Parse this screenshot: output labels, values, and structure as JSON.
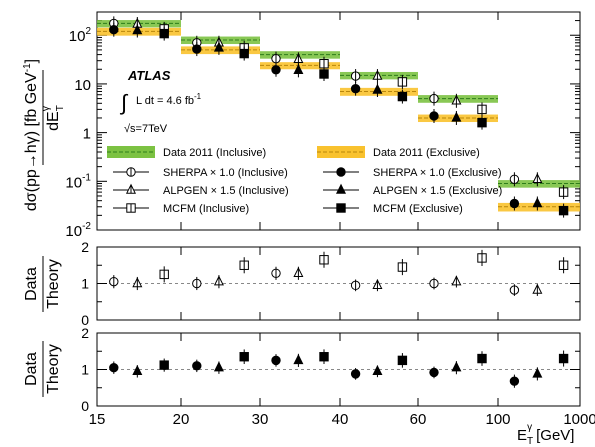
{
  "colors": {
    "inclusive_band": "#7cc242",
    "inclusive_line": "#2e7d1a",
    "exclusive_band": "#f9c22e",
    "exclusive_line": "#b8860b",
    "marker": "#000000",
    "ratio_line": "#888888"
  },
  "chart_data": [
    {
      "type": "scatter",
      "panel": "cross-section",
      "ylabel": "dσ(pp→hγ)/dE_T^γ [fb GeV⁻¹]",
      "ylabel_parts": {
        "line1": "dσ(pp→hγ) [fb GeV",
        "sup": "-1",
        "line1_close": "]",
        "line2": "dE",
        "line2_sub": "T",
        "line2_sup": "γ"
      },
      "y_scale": "log",
      "ylim": [
        0.01,
        300
      ],
      "y_ticks": [
        {
          "value": 0.01,
          "base": "10",
          "exp": "-2"
        },
        {
          "value": 0.1,
          "base": "10",
          "exp": "-1"
        },
        {
          "value": 1,
          "base": "1",
          "exp": ""
        },
        {
          "value": 10,
          "base": "10",
          "exp": ""
        },
        {
          "value": 100,
          "base": "10",
          "exp": "2"
        }
      ],
      "atlas": {
        "label": "ATLAS",
        "lumi_prefix": "L dt = 4.6 fb",
        "lumi_sup": "-1",
        "sqrt_s": "√s=7TeV"
      },
      "bins": [
        {
          "range": [
            15,
            20
          ],
          "incl_data": 175,
          "incl_err": 30,
          "excl_data": 120,
          "excl_err": 22,
          "sherpa_incl": 175,
          "alpgen_incl": 170,
          "mcfm_incl": 135,
          "sherpa_excl": 130,
          "alpgen_excl": 125,
          "mcfm_excl": 108
        },
        {
          "range": [
            20,
            30
          ],
          "incl_data": 80,
          "incl_err": 14,
          "excl_data": 50,
          "excl_err": 9,
          "sherpa_incl": 70,
          "alpgen_incl": 70,
          "mcfm_incl": 55,
          "sherpa_excl": 52,
          "alpgen_excl": 55,
          "mcfm_excl": 42
        },
        {
          "range": [
            30,
            40
          ],
          "incl_data": 40,
          "incl_err": 7,
          "excl_data": 24,
          "excl_err": 4,
          "sherpa_incl": 33,
          "alpgen_incl": 32,
          "mcfm_incl": 26,
          "sherpa_excl": 19.5,
          "alpgen_excl": 19,
          "mcfm_excl": 16
        },
        {
          "range": [
            40,
            60
          ],
          "incl_data": 15,
          "incl_err": 2.6,
          "excl_data": 7,
          "excl_err": 1.3,
          "sherpa_incl": 14.5,
          "alpgen_incl": 14.5,
          "mcfm_incl": 11,
          "sherpa_excl": 8,
          "alpgen_excl": 7.5,
          "mcfm_excl": 5.5
        },
        {
          "range": [
            60,
            100
          ],
          "incl_data": 5,
          "incl_err": 0.9,
          "excl_data": 2.0,
          "excl_err": 0.35,
          "sherpa_incl": 5,
          "alpgen_incl": 4.5,
          "mcfm_incl": 3.0,
          "sherpa_excl": 2.2,
          "alpgen_excl": 2.0,
          "mcfm_excl": 1.6
        },
        {
          "range": [
            100,
            1000
          ],
          "incl_data": 0.09,
          "incl_err": 0.016,
          "excl_data": 0.03,
          "excl_err": 0.006,
          "sherpa_incl": 0.11,
          "alpgen_incl": 0.11,
          "mcfm_incl": 0.06,
          "sherpa_excl": 0.035,
          "alpgen_excl": 0.035,
          "mcfm_excl": 0.025
        }
      ],
      "legend": [
        {
          "label": "Data 2011 (Inclusive)",
          "kind": "band-incl"
        },
        {
          "label": "Data 2011 (Exclusive)",
          "kind": "band-excl"
        },
        {
          "label": "SHERPA × 1.0 (Inclusive)",
          "kind": "circle-open"
        },
        {
          "label": "SHERPA × 1.0 (Exclusive)",
          "kind": "circle-filled"
        },
        {
          "label": "ALPGEN × 1.5 (Inclusive)",
          "kind": "triangle-open"
        },
        {
          "label": "ALPGEN × 1.5 (Exclusive)",
          "kind": "triangle-filled"
        },
        {
          "label": "MCFM (Inclusive)",
          "kind": "square-open"
        },
        {
          "label": "MCFM (Exclusive)",
          "kind": "square-filled"
        }
      ]
    },
    {
      "type": "scatter",
      "panel": "ratio-inclusive",
      "ylabel": "Data/Theory",
      "ylabel_parts": {
        "num": "Data",
        "den": "Theory"
      },
      "ylim": [
        0,
        2
      ],
      "y_ticks": [
        "0",
        "1",
        "2"
      ],
      "series": [
        {
          "name": "SHERPA × 1.0 (Inclusive)",
          "marker": "circle-open",
          "values": [
            1.05,
            1.0,
            1.28,
            0.95,
            1.0,
            0.82
          ],
          "errors": [
            0.18,
            0.18,
            0.18,
            0.16,
            0.16,
            0.16
          ]
        },
        {
          "name": "ALPGEN × 1.5 (Inclusive)",
          "marker": "triangle-open",
          "values": [
            1.0,
            1.05,
            1.28,
            0.95,
            1.05,
            0.82
          ],
          "errors": [
            0.18,
            0.18,
            0.18,
            0.16,
            0.16,
            0.16
          ]
        },
        {
          "name": "MCFM (Inclusive)",
          "marker": "square-open",
          "values": [
            1.25,
            1.5,
            1.65,
            1.45,
            1.7,
            1.5
          ],
          "errors": [
            0.22,
            0.22,
            0.22,
            0.22,
            0.22,
            0.22
          ]
        }
      ]
    },
    {
      "type": "scatter",
      "panel": "ratio-exclusive",
      "ylabel": "Data/Theory",
      "ylabel_parts": {
        "num": "Data",
        "den": "Theory"
      },
      "ylim": [
        0,
        2
      ],
      "y_ticks": [
        "0",
        "1",
        "2"
      ],
      "xlabel": "E_T^γ [GeV]",
      "xlabel_parts": {
        "main": "E",
        "sub": "T",
        "sup": "γ",
        "unit": "[GeV]"
      },
      "x_ticks": [
        "15",
        "20",
        "30",
        "40",
        "60",
        "100",
        "1000"
      ],
      "series": [
        {
          "name": "SHERPA × 1.0 (Exclusive)",
          "marker": "circle-filled",
          "values": [
            1.05,
            1.1,
            1.25,
            0.88,
            0.92,
            0.68
          ],
          "errors": [
            0.17,
            0.17,
            0.17,
            0.16,
            0.16,
            0.18
          ]
        },
        {
          "name": "ALPGEN × 1.5 (Exclusive)",
          "marker": "triangle-filled",
          "values": [
            0.95,
            1.05,
            1.25,
            0.95,
            1.05,
            0.88
          ],
          "errors": [
            0.17,
            0.17,
            0.18,
            0.16,
            0.18,
            0.18
          ]
        },
        {
          "name": "MCFM (Exclusive)",
          "marker": "square-filled",
          "values": [
            1.12,
            1.35,
            1.35,
            1.25,
            1.3,
            1.3
          ],
          "errors": [
            0.18,
            0.2,
            0.2,
            0.2,
            0.2,
            0.22
          ]
        }
      ]
    }
  ]
}
